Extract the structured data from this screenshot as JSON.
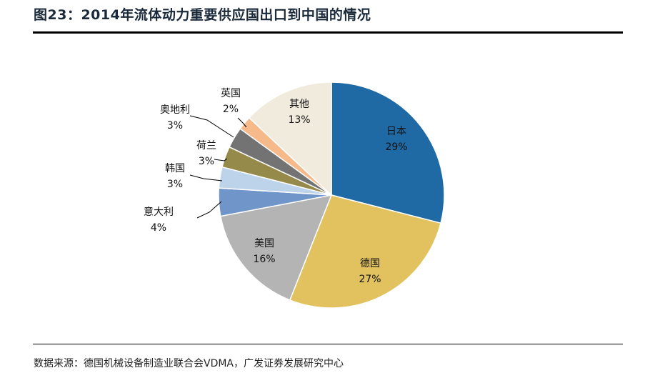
{
  "title": "图23：2014年流体动力重要供应国出口到中国的情况",
  "source": "数据来源：德国机械设备制造业联合会VDMA，广发证券发展研究中心",
  "chart_data": {
    "type": "pie",
    "title": "图23：2014年流体动力重要供应国出口到中国的情况",
    "categories": [
      "日本",
      "德国",
      "美国",
      "意大利",
      "韩国",
      "荷兰",
      "奥地利",
      "英国",
      "其他"
    ],
    "values": [
      29,
      27,
      16,
      4,
      3,
      3,
      3,
      2,
      13
    ],
    "labels": [
      "29%",
      "27%",
      "16%",
      "4%",
      "3%",
      "3%",
      "3%",
      "2%",
      "13%"
    ],
    "colors": [
      "#1f6aa5",
      "#e2c25e",
      "#b4b4b4",
      "#6f95c9",
      "#bcd3ea",
      "#968a4a",
      "#737373",
      "#f5b98a",
      "#f1ebde"
    ],
    "legend": "none"
  }
}
